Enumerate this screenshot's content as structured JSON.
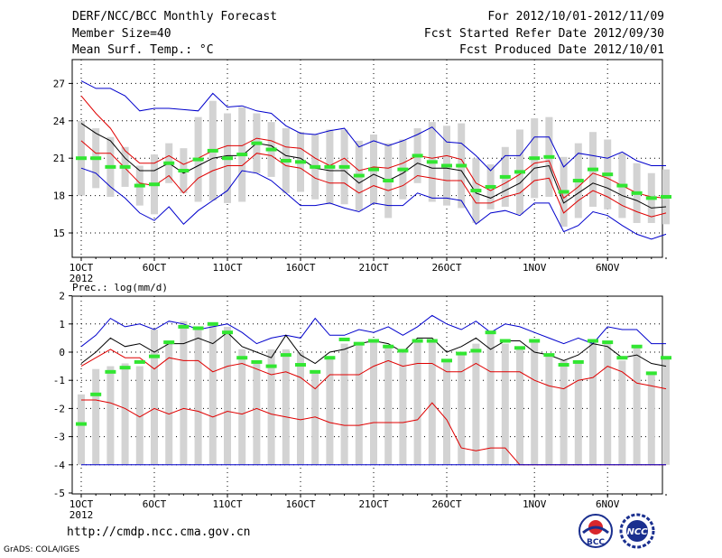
{
  "header": {
    "left": [
      "DERF/NCC/BCC Monthly Forecast",
      "Member Size=40",
      "Mean Surf. Temp.: °C"
    ],
    "right": [
      "For 2012/10/01-2012/11/09",
      "Fcst Started Refer Date 2012/09/30",
      "Fcst Produced Date 2012/10/01"
    ]
  },
  "footer": {
    "url": "http://cmdp.ncc.cma.gov.cn",
    "credit": "GrADS: COLA/IGES"
  },
  "logos": {
    "left": "BCC",
    "right": "NCC"
  },
  "colors": {
    "box": "#d3d3d3",
    "obs": "#32e632",
    "mean": "#000000",
    "spread": "#e00000",
    "range": "#0000cc"
  },
  "chart_data": [
    {
      "type": "line",
      "title": "Mean Surf. Temp.: °C",
      "ylim": [
        13,
        28.6
      ],
      "yticks": [
        15,
        18,
        21,
        24,
        27
      ],
      "xticks": [
        {
          "label": "1OCT",
          "day": 0
        },
        {
          "label": "6OCT",
          "day": 5
        },
        {
          "label": "11OCT",
          "day": 10
        },
        {
          "label": "16OCT",
          "day": 15
        },
        {
          "label": "21OCT",
          "day": 20
        },
        {
          "label": "26OCT",
          "day": 25
        },
        {
          "label": "1NOV",
          "day": 31
        },
        {
          "label": "6NOV",
          "day": 36
        }
      ],
      "year_label": "2012",
      "grid": true,
      "days": 40,
      "series": [
        {
          "name": "max",
          "values": [
            27.2,
            26.6,
            26.6,
            26.0,
            24.8,
            25.0,
            25.0,
            24.9,
            24.8,
            26.2,
            25.1,
            25.2,
            24.8,
            24.6,
            23.6,
            23.0,
            22.9,
            23.2,
            23.4,
            21.9,
            22.4,
            22.0,
            22.4,
            22.9,
            23.5,
            22.3,
            22.2,
            21.2,
            20.0,
            21.2,
            21.2,
            22.7,
            22.7,
            20.3,
            21.4,
            21.2,
            21.0,
            21.5,
            20.8,
            20.4,
            20.4
          ]
        },
        {
          "name": "q_high",
          "values": [
            26.0,
            24.6,
            23.4,
            21.6,
            20.6,
            20.6,
            21.2,
            20.5,
            21.0,
            21.6,
            22.0,
            22.0,
            22.6,
            22.4,
            21.9,
            21.8,
            21.0,
            20.4,
            21.0,
            20.0,
            20.3,
            20.2,
            20.6,
            21.2,
            21.0,
            21.2,
            20.9,
            19.0,
            18.4,
            19.0,
            19.7,
            20.6,
            20.8,
            17.8,
            18.7,
            19.8,
            19.4,
            18.8,
            18.2,
            17.9,
            17.8
          ]
        },
        {
          "name": "mean",
          "values": [
            23.8,
            23.0,
            22.4,
            21.0,
            20.0,
            20.0,
            20.6,
            19.8,
            20.4,
            21.0,
            21.2,
            21.2,
            22.2,
            22.0,
            21.2,
            21.0,
            20.2,
            20.0,
            20.0,
            19.0,
            19.7,
            19.2,
            19.8,
            20.6,
            20.2,
            20.2,
            20.0,
            18.2,
            17.8,
            18.4,
            19.0,
            20.2,
            20.4,
            17.4,
            18.2,
            19.0,
            18.6,
            18.0,
            17.6,
            17.0,
            17.1
          ]
        },
        {
          "name": "q_low",
          "values": [
            22.4,
            21.4,
            21.4,
            20.2,
            19.0,
            18.8,
            19.6,
            18.2,
            19.4,
            20.0,
            20.4,
            20.4,
            21.4,
            21.2,
            20.4,
            20.2,
            19.4,
            19.0,
            19.0,
            18.2,
            18.8,
            18.4,
            18.8,
            19.6,
            19.4,
            19.2,
            19.2,
            17.4,
            17.4,
            17.9,
            18.2,
            19.2,
            19.4,
            16.6,
            17.6,
            18.4,
            17.9,
            17.2,
            16.7,
            16.3,
            16.6
          ]
        },
        {
          "name": "min",
          "values": [
            20.2,
            19.8,
            18.7,
            17.8,
            16.6,
            16.0,
            17.1,
            15.7,
            16.8,
            17.6,
            18.4,
            20.0,
            19.8,
            19.2,
            18.2,
            17.2,
            17.2,
            17.4,
            17.0,
            16.7,
            17.4,
            17.2,
            17.2,
            18.2,
            17.8,
            17.8,
            17.6,
            15.7,
            16.6,
            16.8,
            16.4,
            17.4,
            17.4,
            15.1,
            15.6,
            16.7,
            16.4,
            15.6,
            14.9,
            14.5,
            14.9
          ]
        },
        {
          "name": "observed",
          "values": [
            21.0,
            21.0,
            20.3,
            20.3,
            18.8,
            18.9,
            20.6,
            20.0,
            20.9,
            21.6,
            21.0,
            21.3,
            22.2,
            21.7,
            20.8,
            20.7,
            20.3,
            20.3,
            20.3,
            19.6,
            20.1,
            19.2,
            20.1,
            21.2,
            20.7,
            20.4,
            20.4,
            18.4,
            18.7,
            19.5,
            19.9,
            21.0,
            21.1,
            18.3,
            19.2,
            20.1,
            19.7,
            18.8,
            18.2,
            17.8,
            17.9
          ]
        }
      ],
      "box_half": [
        3,
        2.4,
        2.4,
        1.6,
        1.6,
        2.4,
        1.6,
        1.8,
        3.4,
        4,
        3.6,
        3.8,
        2.4,
        2.2,
        2.6,
        2.4,
        2.6,
        3,
        3,
        2.8,
        2.8,
        3,
        2.4,
        2.2,
        3.2,
        3.2,
        3.4,
        2.6,
        1.8,
        2.4,
        3.4,
        3.2,
        3.2,
        2.8,
        3,
        3,
        2.8,
        2.6,
        2.4,
        2,
        2.2
      ]
    },
    {
      "type": "line",
      "title": "Prec.: log(mm/d)",
      "ylim": [
        -5,
        2
      ],
      "yticks": [
        -5,
        -4,
        -3,
        -2,
        -1,
        0,
        1,
        2
      ],
      "xticks": [
        {
          "label": "1OCT",
          "day": 0
        },
        {
          "label": "6OCT",
          "day": 5
        },
        {
          "label": "11OCT",
          "day": 10
        },
        {
          "label": "16OCT",
          "day": 15
        },
        {
          "label": "21OCT",
          "day": 20
        },
        {
          "label": "26OCT",
          "day": 25
        },
        {
          "label": "1NOV",
          "day": 31
        },
        {
          "label": "6NOV",
          "day": 36
        }
      ],
      "year_label": "2012",
      "grid": true,
      "days": 40,
      "series": [
        {
          "name": "max",
          "values": [
            0.2,
            0.6,
            1.2,
            0.9,
            1.0,
            0.8,
            1.1,
            1.0,
            0.8,
            0.9,
            1.0,
            0.7,
            0.3,
            0.5,
            0.6,
            0.5,
            1.2,
            0.6,
            0.6,
            0.8,
            0.7,
            0.9,
            0.6,
            0.9,
            1.3,
            1.0,
            0.8,
            1.1,
            0.7,
            1.0,
            0.9,
            0.7,
            0.5,
            0.3,
            0.5,
            0.3,
            0.9,
            0.8,
            0.8,
            0.3,
            0.3
          ]
        },
        {
          "name": "mean",
          "values": [
            -0.4,
            0.0,
            0.5,
            0.2,
            0.3,
            0.0,
            0.3,
            0.3,
            0.5,
            0.3,
            0.7,
            0.2,
            0.0,
            -0.2,
            0.6,
            -0.1,
            -0.4,
            0.0,
            0.1,
            0.3,
            0.4,
            0.3,
            0.0,
            0.5,
            0.5,
            0.0,
            0.2,
            0.5,
            0.1,
            0.4,
            0.4,
            0.0,
            -0.1,
            -0.3,
            -0.1,
            0.3,
            0.2,
            -0.2,
            -0.1,
            -0.4,
            -0.5
          ]
        },
        {
          "name": "q_high",
          "values": [
            -0.5,
            -0.2,
            0.1,
            -0.2,
            -0.2,
            -0.6,
            -0.2,
            -0.3,
            -0.3,
            -0.7,
            -0.5,
            -0.4,
            -0.6,
            -0.8,
            -0.7,
            -0.9,
            -1.3,
            -0.8,
            -0.8,
            -0.8,
            -0.5,
            -0.3,
            -0.5,
            -0.4,
            -0.4,
            -0.7,
            -0.7,
            -0.4,
            -0.7,
            -0.7,
            -0.7,
            -1.0,
            -1.2,
            -1.3,
            -1.0,
            -0.9,
            -0.5,
            -0.7,
            -1.1,
            -1.2,
            -1.3
          ]
        },
        {
          "name": "q_low",
          "values": [
            -1.7,
            -1.7,
            -1.8,
            -2.0,
            -2.3,
            -2.0,
            -2.2,
            -2.0,
            -2.1,
            -2.3,
            -2.1,
            -2.2,
            -2.0,
            -2.2,
            -2.3,
            -2.4,
            -2.3,
            -2.5,
            -2.6,
            -2.6,
            -2.5,
            -2.5,
            -2.5,
            -2.4,
            -1.8,
            -2.4,
            -3.4,
            -3.5,
            -3.4,
            -3.4,
            -4.0,
            -4.0,
            -4.0,
            -4.0,
            -4.0,
            -4.0,
            -4.0,
            -4.0,
            -4.0,
            -4.0,
            -4.0
          ]
        },
        {
          "name": "min",
          "values": [
            -4,
            -4,
            -4,
            -4,
            -4,
            -4,
            -4,
            -4,
            -4,
            -4,
            -4,
            -4,
            -4,
            -4,
            -4,
            -4,
            -4,
            -4,
            -4,
            -4,
            -4,
            -4,
            -4,
            -4,
            -4,
            -4,
            -4,
            -4,
            -4,
            -4,
            -4,
            -4,
            -4,
            -4,
            -4,
            -4,
            -4,
            -4,
            -4,
            -4,
            -4
          ]
        },
        {
          "name": "observed",
          "values": [
            -2.55,
            -1.5,
            -0.7,
            -0.55,
            -0.35,
            -0.15,
            0.35,
            0.9,
            0.85,
            1.0,
            0.7,
            -0.2,
            -0.35,
            -0.5,
            -0.1,
            -0.45,
            -0.7,
            -0.2,
            0.45,
            0.3,
            0.4,
            0.2,
            0.05,
            0.4,
            0.4,
            -0.3,
            -0.05,
            0.05,
            0.7,
            0.4,
            0.15,
            0.4,
            -0.1,
            -0.45,
            -0.35,
            0.4,
            0.35,
            -0.2,
            0.2,
            -0.75,
            -0.2
          ]
        }
      ],
      "box_top": [
        -1.5,
        -0.6,
        -0.5,
        -0.4,
        -0.5,
        0.8,
        0.4,
        1.1,
        0.9,
        1.0,
        0.9,
        0.1,
        -0.4,
        0.1,
        0.1,
        0.0,
        -0.7,
        -0.2,
        0.3,
        0.3,
        0.4,
        0.2,
        0.1,
        0.4,
        0.4,
        -0.3,
        -0.1,
        0.3,
        0.7,
        0.3,
        0.1,
        0.4,
        -0.1,
        -0.3,
        -0.4,
        0.4,
        0.3,
        -0.3,
        0.2,
        -0.8,
        -0.2
      ]
    }
  ]
}
